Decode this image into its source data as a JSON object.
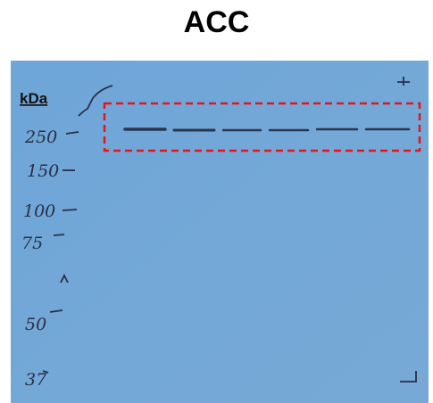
{
  "title": "ACC",
  "blot": {
    "unit": "kDa",
    "markers": [
      "250",
      "150",
      "100",
      "75",
      "50",
      "37"
    ]
  }
}
